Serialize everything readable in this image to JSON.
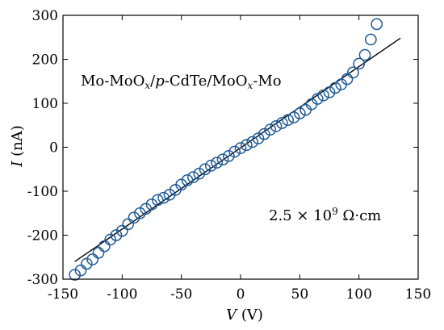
{
  "chart_data": {
    "type": "scatter",
    "xlabel": {
      "italic": "V",
      "unit": " (V)"
    },
    "ylabel": {
      "italic": "I",
      "unit": " (nA)"
    },
    "xlim": [
      -150,
      150
    ],
    "ylim": [
      -300,
      300
    ],
    "xticks": [
      -150,
      -100,
      -50,
      0,
      50,
      100,
      150
    ],
    "yticks": [
      -300,
      -200,
      -100,
      0,
      100,
      200,
      300
    ],
    "xtick_labels": [
      "-150",
      "-100",
      "-50",
      "0",
      "50",
      "100",
      "150"
    ],
    "ytick_labels": [
      "-300",
      "-200",
      "-100",
      "0",
      "100",
      "200",
      "300"
    ],
    "grid": false,
    "annotations": {
      "device": {
        "p1": "Mo-MoO",
        "s1": "x",
        "p2": "/",
        "p3": "p",
        "p4": "-CdTe/MoO",
        "s2": "x",
        "p5": "-Mo"
      },
      "resistivity": {
        "p1": "2.5 × 10",
        "s1": "9",
        "p2": " Ω·cm"
      }
    },
    "series": [
      {
        "marker": "open-circle",
        "color": "#1f5a96",
        "points": [
          [
            -140,
            -290
          ],
          [
            -135,
            -280
          ],
          [
            -130,
            -265
          ],
          [
            -125,
            -255
          ],
          [
            -120,
            -240
          ],
          [
            -115,
            -225
          ],
          [
            -110,
            -210
          ],
          [
            -105,
            -200
          ],
          [
            -100,
            -190
          ],
          [
            -95,
            -175
          ],
          [
            -90,
            -160
          ],
          [
            -85,
            -150
          ],
          [
            -80,
            -140
          ],
          [
            -75,
            -130
          ],
          [
            -70,
            -120
          ],
          [
            -65,
            -115
          ],
          [
            -60,
            -108
          ],
          [
            -55,
            -97
          ],
          [
            -50,
            -85
          ],
          [
            -45,
            -75
          ],
          [
            -40,
            -68
          ],
          [
            -35,
            -60
          ],
          [
            -30,
            -50
          ],
          [
            -25,
            -42
          ],
          [
            -20,
            -35
          ],
          [
            -15,
            -28
          ],
          [
            -10,
            -20
          ],
          [
            -5,
            -10
          ],
          [
            0,
            -2
          ],
          [
            5,
            5
          ],
          [
            10,
            12
          ],
          [
            15,
            20
          ],
          [
            20,
            30
          ],
          [
            25,
            40
          ],
          [
            30,
            48
          ],
          [
            35,
            55
          ],
          [
            40,
            62
          ],
          [
            45,
            68
          ],
          [
            50,
            77
          ],
          [
            55,
            85
          ],
          [
            60,
            98
          ],
          [
            65,
            110
          ],
          [
            70,
            118
          ],
          [
            75,
            125
          ],
          [
            80,
            135
          ],
          [
            85,
            143
          ],
          [
            90,
            155
          ],
          [
            95,
            170
          ],
          [
            100,
            190
          ],
          [
            105,
            210
          ],
          [
            110,
            245
          ],
          [
            115,
            280
          ]
        ]
      }
    ],
    "fit_line": {
      "color": "#000000",
      "x": [
        -140,
        135
      ],
      "y": [
        -260,
        248
      ]
    }
  }
}
